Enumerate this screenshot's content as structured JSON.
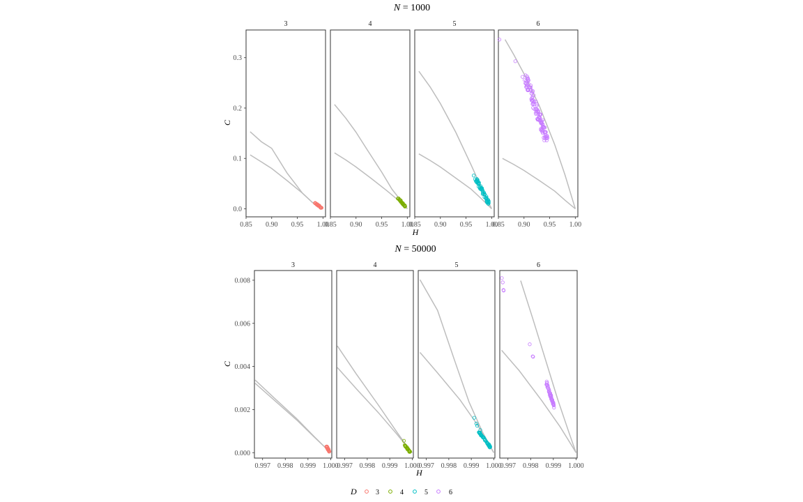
{
  "colors": {
    "3": "#F8766D",
    "4": "#7CAE00",
    "5": "#00BFC4",
    "6": "#C77CFF",
    "bound": "#bdbdbd"
  },
  "legend": {
    "title": "D",
    "entries": [
      "3",
      "4",
      "5",
      "6"
    ]
  },
  "chart_data": [
    {
      "type": "scatter",
      "title_prefix": "N",
      "title_value": "= 1000",
      "xlabel": "H",
      "ylabel": "C",
      "xlim": [
        0.85,
        1.005
      ],
      "ylim": [
        -0.016,
        0.355
      ],
      "x_ticks": [
        0.85,
        0.9,
        0.95,
        1.0
      ],
      "x_tick_labels": [
        "0.85",
        "0.90",
        "0.95",
        "1.00"
      ],
      "y_ticks": [
        0.0,
        0.1,
        0.2,
        0.3
      ],
      "y_tick_labels": [
        "0.0",
        "0.1",
        "0.2",
        "0.3"
      ],
      "facets": [
        {
          "label": "3",
          "upper": [
            [
              0.858,
              0.153
            ],
            [
              0.88,
              0.133
            ],
            [
              0.9,
              0.12
            ],
            [
              0.93,
              0.071
            ],
            [
              0.96,
              0.031
            ],
            [
              0.98,
              0.012
            ],
            [
              1.0,
              0.0
            ]
          ],
          "lower": [
            [
              0.858,
              0.107
            ],
            [
              0.88,
              0.093
            ],
            [
              0.9,
              0.08
            ],
            [
              0.93,
              0.056
            ],
            [
              0.96,
              0.031
            ],
            [
              0.98,
              0.012
            ],
            [
              1.0,
              0.0
            ]
          ],
          "points": {
            "x0": 0.984,
            "y0": 0.012,
            "x1": 0.998,
            "y1": 0.001,
            "n": 30,
            "jitter": 0.002
          }
        },
        {
          "label": "4",
          "upper": [
            [
              0.858,
              0.207
            ],
            [
              0.88,
              0.18
            ],
            [
              0.9,
              0.152
            ],
            [
              0.92,
              0.12
            ],
            [
              0.95,
              0.073
            ],
            [
              0.97,
              0.039
            ],
            [
              1.0,
              0.0
            ]
          ],
          "lower": [
            [
              0.858,
              0.111
            ],
            [
              0.88,
              0.097
            ],
            [
              0.9,
              0.083
            ],
            [
              0.93,
              0.06
            ],
            [
              0.96,
              0.036
            ],
            [
              0.98,
              0.019
            ],
            [
              1.0,
              0.0
            ]
          ],
          "points": {
            "x0": 0.982,
            "y0": 0.021,
            "x1": 0.996,
            "y1": 0.004,
            "n": 35,
            "jitter": 0.002
          }
        },
        {
          "label": "5",
          "upper": [
            [
              0.858,
              0.273
            ],
            [
              0.88,
              0.242
            ],
            [
              0.9,
              0.209
            ],
            [
              0.93,
              0.152
            ],
            [
              0.96,
              0.087
            ],
            [
              0.98,
              0.042
            ],
            [
              1.0,
              0.0
            ]
          ],
          "lower": [
            [
              0.858,
              0.109
            ],
            [
              0.88,
              0.096
            ],
            [
              0.9,
              0.083
            ],
            [
              0.93,
              0.061
            ],
            [
              0.96,
              0.039
            ],
            [
              0.98,
              0.02
            ],
            [
              1.0,
              0.0
            ]
          ],
          "points": {
            "x0": 0.968,
            "y0": 0.062,
            "x1": 0.995,
            "y1": 0.01,
            "n": 60,
            "jitter": 0.004
          },
          "outliers": [
            [
              0.965,
              0.066
            ],
            [
              0.972,
              0.058
            ]
          ]
        },
        {
          "label": "6",
          "upper": [
            [
              0.863,
              0.336
            ],
            [
              0.88,
              0.306
            ],
            [
              0.9,
              0.268
            ],
            [
              0.93,
              0.204
            ],
            [
              0.96,
              0.127
            ],
            [
              0.98,
              0.067
            ],
            [
              1.0,
              0.0
            ]
          ],
          "lower": [
            [
              0.858,
              0.1
            ],
            [
              0.88,
              0.088
            ],
            [
              0.9,
              0.076
            ],
            [
              0.93,
              0.056
            ],
            [
              0.96,
              0.035
            ],
            [
              0.98,
              0.017
            ],
            [
              1.0,
              0.0
            ]
          ],
          "points": {
            "x0": 0.903,
            "y0": 0.26,
            "x1": 0.944,
            "y1": 0.138,
            "n": 120,
            "jitter": 0.009
          },
          "outliers": [
            [
              0.852,
              0.336
            ],
            [
              0.883,
              0.293
            ],
            [
              0.897,
              0.262
            ],
            [
              0.903,
              0.265
            ]
          ]
        }
      ]
    },
    {
      "type": "scatter",
      "title_prefix": "N",
      "title_value": "= 50000",
      "xlabel": "H",
      "ylabel": "C",
      "xlim": [
        0.99664,
        1.00005
      ],
      "ylim": [
        -0.00025,
        0.00845
      ],
      "x_ticks": [
        0.997,
        0.998,
        0.999,
        1.0
      ],
      "x_tick_labels": [
        "0.997",
        "0.998",
        "0.999",
        "1.000"
      ],
      "y_ticks": [
        0.0,
        0.002,
        0.004,
        0.006,
        0.008
      ],
      "y_tick_labels": [
        "0.000",
        "0.002",
        "0.004",
        "0.006",
        "0.008"
      ],
      "facets": [
        {
          "label": "3",
          "upper": [
            [
              0.99667,
              0.00337
            ],
            [
              0.9975,
              0.00255
            ],
            [
              0.9985,
              0.00158
            ],
            [
              0.9993,
              0.00072
            ],
            [
              0.99985,
              0.00015
            ],
            [
              1.0,
              0.0
            ]
          ],
          "lower": [
            [
              0.99667,
              0.00322
            ],
            [
              0.9975,
              0.00245
            ],
            [
              0.9985,
              0.00152
            ],
            [
              0.9993,
              0.0007
            ],
            [
              0.99985,
              0.00015
            ],
            [
              1.0,
              0.0
            ]
          ],
          "points": {
            "x0": 0.99982,
            "y0": 0.00028,
            "x1": 0.99996,
            "y1": 2e-05,
            "n": 25,
            "jitter": 4e-05
          }
        },
        {
          "label": "4",
          "upper": [
            [
              0.99667,
              0.00495
            ],
            [
              0.9975,
              0.00367
            ],
            [
              0.9985,
              0.0022
            ],
            [
              0.9993,
              0.00098
            ],
            [
              0.9998,
              0.00025
            ],
            [
              1.0,
              0.0
            ]
          ],
          "lower": [
            [
              0.99667,
              0.00395
            ],
            [
              0.9975,
              0.00298
            ],
            [
              0.9985,
              0.00185
            ],
            [
              0.9993,
              0.00088
            ],
            [
              0.9998,
              0.00024
            ],
            [
              1.0,
              0.0
            ]
          ],
          "points": {
            "x0": 0.99968,
            "y0": 0.00035,
            "x1": 0.9999,
            "y1": 3e-05,
            "n": 30,
            "jitter": 4e-05
          },
          "outliers": [
            [
              0.99963,
              0.00055
            ]
          ]
        },
        {
          "label": "5",
          "upper": [
            [
              0.99672,
              0.00802
            ],
            [
              0.9975,
              0.0066
            ],
            [
              0.99825,
              0.0043
            ],
            [
              0.9989,
              0.00235
            ],
            [
              0.9995,
              0.00095
            ],
            [
              1.0,
              0.0
            ]
          ],
          "lower": [
            [
              0.99672,
              0.00465
            ],
            [
              0.9975,
              0.0037
            ],
            [
              0.9985,
              0.00245
            ],
            [
              0.9993,
              0.00125
            ],
            [
              0.9998,
              0.00035
            ],
            [
              1.0,
              0.0
            ]
          ],
          "points": {
            "x0": 0.99935,
            "y0": 0.00095,
            "x1": 0.99985,
            "y1": 0.00025,
            "n": 50,
            "jitter": 5e-05
          },
          "outliers": [
            [
              0.99913,
              0.00162
            ],
            [
              0.99922,
              0.00135
            ],
            [
              0.99926,
              0.00125
            ],
            [
              0.9994,
              0.00105
            ]
          ]
        },
        {
          "label": "6",
          "upper": [
            [
              0.99756,
              0.00798
            ],
            [
              0.9981,
              0.0062
            ],
            [
              0.9986,
              0.0045
            ],
            [
              0.9992,
              0.00245
            ],
            [
              0.9997,
              0.0009
            ],
            [
              1.0,
              0.0
            ]
          ],
          "lower": [
            [
              0.99672,
              0.00475
            ],
            [
              0.9975,
              0.0038
            ],
            [
              0.9985,
              0.0024
            ],
            [
              0.9993,
              0.0012
            ],
            [
              0.9998,
              0.00035
            ],
            [
              1.0,
              0.0
            ]
          ],
          "points": {
            "x0": 0.99868,
            "y0": 0.0033,
            "x1": 0.99905,
            "y1": 0.00208,
            "n": 55,
            "jitter": 5e-05
          },
          "outliers": [
            [
              0.99673,
              0.0081
            ],
            [
              0.99677,
              0.0079
            ],
            [
              0.9968,
              0.00755
            ],
            [
              0.99681,
              0.00752
            ],
            [
              0.99796,
              0.00503
            ],
            [
              0.99809,
              0.00447
            ],
            [
              0.99811,
              0.00445
            ]
          ]
        }
      ]
    }
  ]
}
